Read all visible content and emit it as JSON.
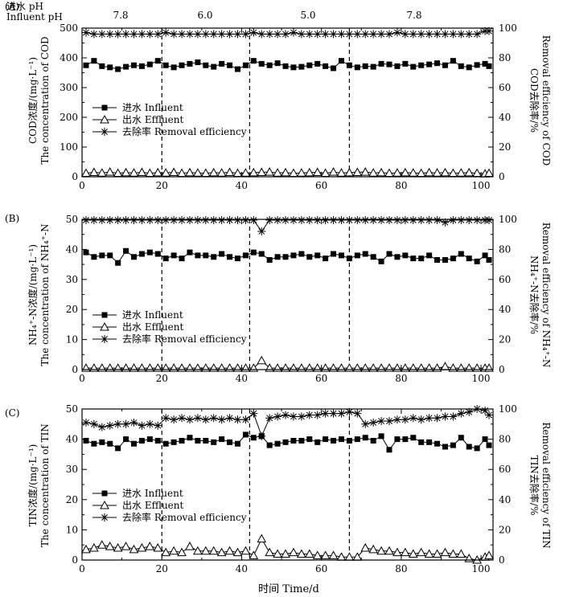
{
  "figure": {
    "ph_header": {
      "label_cn": "进水 pH",
      "label_en": "Influent pH"
    },
    "ph_segments": [
      "7.8",
      "6.0",
      "5.0",
      "7.8"
    ],
    "ph_boundaries": [
      20,
      42,
      67
    ],
    "xlabel": "时间 Time/d",
    "xticks": [
      "0",
      "20",
      "40",
      "60",
      "80",
      "100"
    ]
  },
  "chart_data": [
    {
      "type": "line",
      "panel": "(A)",
      "xlim": [
        0,
        103
      ],
      "ylim": [
        0,
        500
      ],
      "y2lim": [
        0,
        100
      ],
      "yticks": [
        "0",
        "100",
        "200",
        "300",
        "400",
        "500"
      ],
      "y2ticks": [
        "0",
        "20",
        "40",
        "60",
        "80",
        "100"
      ],
      "ylabel_line1": "COD浓度/(mg·L⁻¹)",
      "ylabel_line2": "The concentration of COD",
      "y2label_line1": "COD去除率/%",
      "y2label_line2": "Removal efficiency of COD",
      "legend": [
        "进水 Influent",
        "出水 Effluent",
        "去除率 Removal efficiency"
      ],
      "x": [
        1,
        3,
        5,
        7,
        9,
        11,
        13,
        15,
        17,
        19,
        21,
        23,
        25,
        27,
        29,
        31,
        33,
        35,
        37,
        39,
        41,
        43,
        45,
        47,
        49,
        51,
        53,
        55,
        57,
        59,
        61,
        63,
        65,
        67,
        69,
        71,
        73,
        75,
        77,
        79,
        81,
        83,
        85,
        87,
        89,
        91,
        93,
        95,
        97,
        99,
        101,
        102
      ],
      "series": [
        {
          "name": "进水 Influent",
          "axis": "left",
          "marker": "square",
          "values": [
            375,
            390,
            372,
            368,
            362,
            370,
            375,
            372,
            378,
            390,
            375,
            368,
            375,
            380,
            385,
            375,
            370,
            380,
            375,
            362,
            375,
            390,
            380,
            375,
            382,
            372,
            368,
            370,
            375,
            380,
            372,
            365,
            390,
            375,
            368,
            372,
            370,
            380,
            378,
            372,
            380,
            370,
            375,
            378,
            382,
            375,
            390,
            372,
            368,
            376,
            380,
            372
          ]
        },
        {
          "name": "出水 Effluent",
          "axis": "left",
          "marker": "triangle",
          "values": [
            12,
            15,
            13,
            16,
            12,
            14,
            13,
            15,
            12,
            14,
            13,
            15,
            12,
            14,
            13,
            12,
            14,
            13,
            15,
            12,
            13,
            14,
            15,
            16,
            13,
            14,
            12,
            13,
            14,
            15,
            12,
            16,
            13,
            14,
            15,
            16,
            13,
            14,
            12,
            13,
            14,
            13,
            12,
            14,
            13,
            14,
            12,
            13,
            14,
            12,
            10,
            12
          ]
        },
        {
          "name": "去除率 Removal efficiency",
          "axis": "right",
          "marker": "star",
          "values": [
            97,
            96,
            96,
            96,
            96,
            96,
            96,
            96,
            96,
            96,
            97,
            96,
            96,
            96,
            96,
            96,
            96,
            96,
            96,
            96,
            96,
            97,
            96,
            96,
            96,
            96,
            97,
            96,
            96,
            96,
            96,
            96,
            96,
            96,
            96,
            96,
            96,
            96,
            96,
            97,
            96,
            96,
            96,
            96,
            96,
            96,
            96,
            96,
            96,
            96,
            98,
            98
          ]
        }
      ]
    },
    {
      "type": "line",
      "panel": "(B)",
      "xlim": [
        0,
        103
      ],
      "ylim": [
        0,
        50
      ],
      "y2lim": [
        0,
        100
      ],
      "yticks": [
        "0",
        "10",
        "20",
        "30",
        "40",
        "50"
      ],
      "y2ticks": [
        "0",
        "20",
        "40",
        "60",
        "80",
        "100"
      ],
      "ylabel_line1": "NH₄⁺-N浓度/(mg·L⁻¹)",
      "ylabel_line2": "The concentration of NH₄⁺-N",
      "y2label_line1": "NH₄⁺-N去除率/%",
      "y2label_line2": "Removal efficiency of NH₄⁺-N",
      "legend": [
        "进水 Influent",
        "出水 Effluent",
        "去除率 Removal efficiency"
      ],
      "x": [
        1,
        3,
        5,
        7,
        9,
        11,
        13,
        15,
        17,
        19,
        21,
        23,
        25,
        27,
        29,
        31,
        33,
        35,
        37,
        39,
        41,
        43,
        45,
        47,
        49,
        51,
        53,
        55,
        57,
        59,
        61,
        63,
        65,
        67,
        69,
        71,
        73,
        75,
        77,
        79,
        81,
        83,
        85,
        87,
        89,
        91,
        93,
        95,
        97,
        99,
        101,
        102
      ],
      "series": [
        {
          "name": "进水 Influent",
          "axis": "left",
          "marker": "square",
          "values": [
            39,
            37.5,
            38,
            38,
            35.5,
            39.5,
            37.5,
            38.5,
            39,
            38.5,
            37,
            38,
            37,
            39,
            38,
            38,
            37.5,
            38.5,
            37.5,
            37,
            38,
            39,
            38.5,
            36.5,
            37.5,
            37.5,
            38,
            38.5,
            37.5,
            38,
            37,
            38.5,
            38,
            37,
            38,
            38.5,
            37.5,
            36,
            38.5,
            37.5,
            38,
            37,
            37,
            38,
            36.5,
            36.5,
            37,
            38.5,
            37,
            36,
            38,
            36.5
          ]
        },
        {
          "name": "出水 Effluent",
          "axis": "left",
          "marker": "triangle",
          "values": [
            0.5,
            0.5,
            0.5,
            0.5,
            0.5,
            0.5,
            0.5,
            0.5,
            0.5,
            0.5,
            0.5,
            0.5,
            0.5,
            0.5,
            0.5,
            0.5,
            0.5,
            0.5,
            0.5,
            0.5,
            0.5,
            0.5,
            3,
            0.5,
            0.5,
            0.5,
            0.5,
            0.5,
            0.5,
            0.5,
            0.5,
            0.5,
            0.5,
            0.5,
            0.5,
            0.5,
            0.5,
            0.5,
            0.5,
            0.5,
            0.5,
            0.5,
            0.5,
            0.5,
            0.5,
            1,
            0.5,
            0.5,
            0.5,
            0.5,
            0.5,
            0.5
          ]
        },
        {
          "name": "去除率 Removal efficiency",
          "axis": "right",
          "marker": "star",
          "values": [
            99.5,
            99.5,
            99.5,
            99.5,
            99.5,
            99.5,
            99.5,
            99.5,
            99.5,
            99.5,
            99.5,
            99.5,
            99.5,
            99.5,
            99.5,
            99.5,
            99.5,
            99.5,
            99.5,
            99.5,
            99.5,
            99.5,
            92,
            99.5,
            99.5,
            99.5,
            99.5,
            99.5,
            99.5,
            99.5,
            99.5,
            99.5,
            99.5,
            99.5,
            99.5,
            99.5,
            99.5,
            99.5,
            99.5,
            99.5,
            99.5,
            99.5,
            99.5,
            99.5,
            99.5,
            98,
            99.5,
            99.5,
            99.5,
            99.5,
            99.5,
            99.5
          ]
        }
      ]
    },
    {
      "type": "line",
      "panel": "(C)",
      "xlim": [
        0,
        103
      ],
      "ylim": [
        0,
        50
      ],
      "y2lim": [
        0,
        100
      ],
      "yticks": [
        "0",
        "10",
        "20",
        "30",
        "40",
        "50"
      ],
      "y2ticks": [
        "0",
        "20",
        "40",
        "60",
        "80",
        "100"
      ],
      "ylabel_line1": "TIN浓度/(mg·L⁻¹)",
      "ylabel_line2": "The concentration of TIN",
      "y2label_line1": "TIN去除率/%",
      "y2label_line2": "Removal efficiency of TIN",
      "legend": [
        "进水 Influent",
        "出水 Effluent",
        "去除率 Removal efficiency"
      ],
      "x": [
        1,
        3,
        5,
        7,
        9,
        11,
        13,
        15,
        17,
        19,
        21,
        23,
        25,
        27,
        29,
        31,
        33,
        35,
        37,
        39,
        41,
        43,
        45,
        47,
        49,
        51,
        53,
        55,
        57,
        59,
        61,
        63,
        65,
        67,
        69,
        71,
        73,
        75,
        77,
        79,
        81,
        83,
        85,
        87,
        89,
        91,
        93,
        95,
        97,
        99,
        101,
        102
      ],
      "series": [
        {
          "name": "进水 Influent",
          "axis": "left",
          "marker": "square",
          "values": [
            39.5,
            38.5,
            39,
            38.5,
            37,
            40,
            38.5,
            39.5,
            40,
            39.5,
            38.5,
            39,
            39.5,
            40.5,
            39.5,
            39.5,
            39,
            40,
            39,
            38.5,
            41.5,
            40.5,
            41,
            38,
            38.5,
            39,
            39.5,
            39.5,
            40,
            39,
            40,
            39.5,
            40,
            39.5,
            40,
            40.5,
            39.5,
            41,
            36.5,
            40,
            40,
            40.5,
            39,
            39,
            38.5,
            37.5,
            38,
            40.5,
            37.5,
            37,
            40,
            38
          ]
        },
        {
          "name": "出水 Effluent",
          "axis": "left",
          "marker": "triangle",
          "values": [
            3.5,
            4,
            5,
            4.5,
            4,
            4.5,
            3.5,
            4,
            4.5,
            4,
            2.5,
            3,
            2.5,
            4.5,
            3,
            3,
            3,
            2.5,
            3,
            2.5,
            3,
            1.5,
            7,
            2.5,
            2,
            2,
            2.5,
            2,
            2,
            1.5,
            1.5,
            1.5,
            1,
            1,
            1,
            4,
            3.5,
            3,
            3,
            2.5,
            2.5,
            2,
            2.5,
            2,
            2,
            2.5,
            2,
            2,
            0.5,
            0,
            1,
            1.5
          ]
        },
        {
          "name": "去除率 Removal efficiency",
          "axis": "right",
          "marker": "star",
          "values": [
            91,
            90,
            88,
            89,
            90,
            90,
            91,
            89,
            90,
            89,
            94,
            93,
            94,
            93,
            94,
            93,
            94,
            93,
            94,
            93,
            93,
            97,
            82,
            94,
            95,
            96,
            95,
            95,
            96,
            96,
            97,
            97,
            97,
            98,
            97,
            90,
            91,
            92,
            92,
            93,
            93,
            94,
            93,
            94,
            94,
            95,
            95,
            97,
            98,
            100,
            99,
            96
          ]
        }
      ]
    }
  ]
}
